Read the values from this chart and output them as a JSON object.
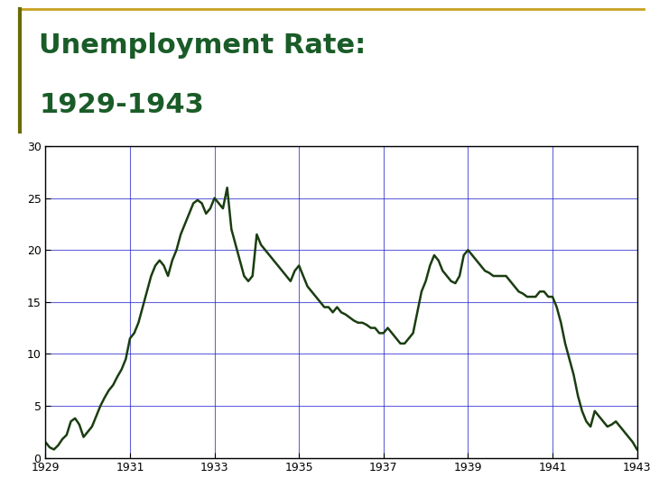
{
  "title_line1": "Unemployment Rate:",
  "title_line2": "1929-1943",
  "title_color": "#1A5C28",
  "title_fontsize": 22,
  "border_color_left": "#6B6B00",
  "border_color_top": "#C8A020",
  "background_color": "#FFFFFF",
  "plot_bg_color": "#FFFFFF",
  "line_color": "#1A3D10",
  "line_width": 1.8,
  "grid_color": "#2222CC",
  "grid_alpha": 0.7,
  "xlim": [
    1929,
    1943
  ],
  "ylim": [
    0,
    30
  ],
  "xticks": [
    1929,
    1931,
    1933,
    1935,
    1937,
    1939,
    1941,
    1943
  ],
  "yticks": [
    0,
    5,
    10,
    15,
    20,
    25,
    30
  ],
  "years": [
    1929.0,
    1929.1,
    1929.2,
    1929.3,
    1929.4,
    1929.5,
    1929.6,
    1929.7,
    1929.8,
    1929.9,
    1930.0,
    1930.1,
    1930.2,
    1930.3,
    1930.4,
    1930.5,
    1930.6,
    1930.7,
    1930.8,
    1930.9,
    1931.0,
    1931.1,
    1931.2,
    1931.3,
    1931.4,
    1931.5,
    1931.6,
    1931.7,
    1931.8,
    1931.9,
    1932.0,
    1932.1,
    1932.2,
    1932.3,
    1932.4,
    1932.5,
    1932.6,
    1932.7,
    1932.8,
    1932.9,
    1933.0,
    1933.1,
    1933.2,
    1933.3,
    1933.4,
    1933.5,
    1933.6,
    1933.7,
    1933.8,
    1933.9,
    1934.0,
    1934.1,
    1934.2,
    1934.3,
    1934.4,
    1934.5,
    1934.6,
    1934.7,
    1934.8,
    1934.9,
    1935.0,
    1935.1,
    1935.2,
    1935.3,
    1935.4,
    1935.5,
    1935.6,
    1935.7,
    1935.8,
    1935.9,
    1936.0,
    1936.1,
    1936.2,
    1936.3,
    1936.4,
    1936.5,
    1936.6,
    1936.7,
    1936.8,
    1936.9,
    1937.0,
    1937.1,
    1937.2,
    1937.3,
    1937.4,
    1937.5,
    1937.6,
    1937.7,
    1937.8,
    1937.9,
    1938.0,
    1938.1,
    1938.2,
    1938.3,
    1938.4,
    1938.5,
    1938.6,
    1938.7,
    1938.8,
    1938.9,
    1939.0,
    1939.1,
    1939.2,
    1939.3,
    1939.4,
    1939.5,
    1939.6,
    1939.7,
    1939.8,
    1939.9,
    1940.0,
    1940.1,
    1940.2,
    1940.3,
    1940.4,
    1940.5,
    1940.6,
    1940.7,
    1940.8,
    1940.9,
    1941.0,
    1941.1,
    1941.2,
    1941.3,
    1941.4,
    1941.5,
    1941.6,
    1941.7,
    1941.8,
    1941.9,
    1942.0,
    1942.1,
    1942.2,
    1942.3,
    1942.4,
    1942.5,
    1942.6,
    1942.7,
    1942.8,
    1942.9,
    1943.0
  ],
  "unemployment": [
    1.5,
    1.0,
    0.8,
    1.2,
    1.8,
    2.2,
    3.5,
    3.8,
    3.2,
    2.0,
    2.5,
    3.0,
    4.0,
    5.0,
    5.8,
    6.5,
    7.0,
    7.8,
    8.5,
    9.5,
    11.5,
    12.0,
    13.0,
    14.5,
    16.0,
    17.5,
    18.5,
    19.0,
    18.5,
    17.5,
    19.0,
    20.0,
    21.5,
    22.5,
    23.5,
    24.5,
    24.8,
    24.5,
    23.5,
    24.0,
    25.0,
    24.5,
    24.0,
    26.0,
    22.0,
    20.5,
    19.0,
    17.5,
    17.0,
    17.5,
    21.5,
    20.5,
    20.0,
    19.5,
    19.0,
    18.5,
    18.0,
    17.5,
    17.0,
    18.0,
    18.5,
    17.5,
    16.5,
    16.0,
    15.5,
    15.0,
    14.5,
    14.5,
    14.0,
    14.5,
    14.0,
    13.8,
    13.5,
    13.2,
    13.0,
    13.0,
    12.8,
    12.5,
    12.5,
    12.0,
    12.0,
    12.5,
    12.0,
    11.5,
    11.0,
    11.0,
    11.5,
    12.0,
    14.0,
    16.0,
    17.0,
    18.5,
    19.5,
    19.0,
    18.0,
    17.5,
    17.0,
    16.8,
    17.5,
    19.5,
    20.0,
    19.5,
    19.0,
    18.5,
    18.0,
    17.8,
    17.5,
    17.5,
    17.5,
    17.5,
    17.0,
    16.5,
    16.0,
    15.8,
    15.5,
    15.5,
    15.5,
    16.0,
    16.0,
    15.5,
    15.5,
    14.5,
    13.0,
    11.0,
    9.5,
    8.0,
    6.0,
    4.5,
    3.5,
    3.0,
    4.5,
    4.0,
    3.5,
    3.0,
    3.2,
    3.5,
    3.0,
    2.5,
    2.0,
    1.5,
    0.8
  ]
}
